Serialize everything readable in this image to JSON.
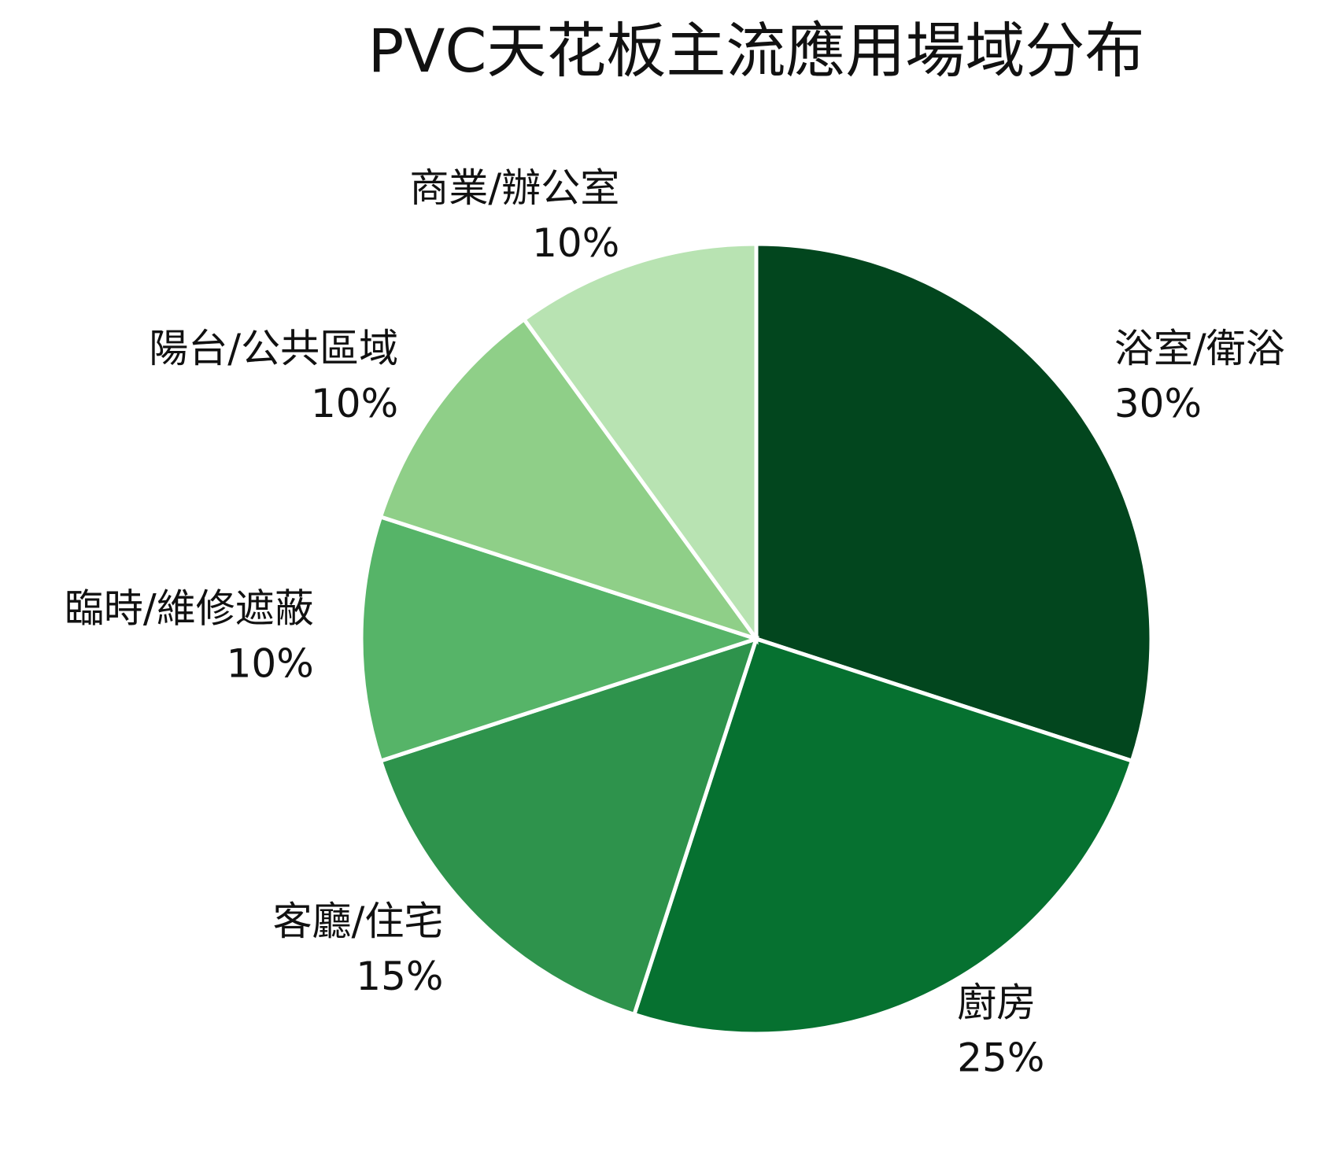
{
  "chart_data": {
    "type": "pie",
    "title": "PVC天花板主流應用場域分布",
    "categories": [
      "浴室/衛浴",
      "廚房",
      "客廳/住宅",
      "臨時/維修遮蔽",
      "陽台/公共區域",
      "商業/辦公室"
    ],
    "values": [
      30,
      25,
      15,
      10,
      10,
      10
    ],
    "value_labels": [
      "30%",
      "25%",
      "15%",
      "10%",
      "10%",
      "10%"
    ],
    "colors": [
      "#02461e",
      "#067130",
      "#2e934c",
      "#56b468",
      "#8fcf88",
      "#b8e3b2"
    ]
  }
}
